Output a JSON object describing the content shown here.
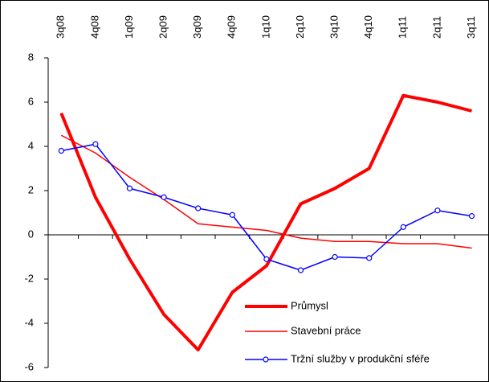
{
  "chart_data": {
    "type": "line",
    "categories": [
      "3q08",
      "4q08",
      "1q09",
      "2q09",
      "3q09",
      "4q09",
      "1q10",
      "2q10",
      "3q10",
      "4q10",
      "1q11",
      "2q11",
      "3q11"
    ],
    "series": [
      {
        "name": "Průmysl",
        "color": "#ff0000",
        "values": [
          5.5,
          1.7,
          -1.1,
          -3.6,
          -5.2,
          -2.6,
          -1.4,
          1.4,
          2.1,
          3.0,
          6.3,
          6.0,
          5.6
        ]
      },
      {
        "name": "Stavební práce",
        "color": "#ff0000",
        "values": [
          4.5,
          3.7,
          2.6,
          1.6,
          0.5,
          0.35,
          0.2,
          -0.15,
          -0.3,
          -0.3,
          -0.4,
          -0.4,
          -0.6
        ]
      },
      {
        "name": "Tržní služby v produkční sféře",
        "color": "#0000ff",
        "values": [
          3.8,
          4.1,
          2.1,
          1.7,
          1.2,
          0.9,
          -1.1,
          -1.6,
          -1.0,
          -1.05,
          0.35,
          1.1,
          0.85
        ]
      }
    ],
    "ylim": [
      -6,
      8
    ],
    "yticks": [
      -6,
      -4,
      -2,
      0,
      2,
      4,
      6,
      8
    ],
    "legend": "lower right"
  }
}
